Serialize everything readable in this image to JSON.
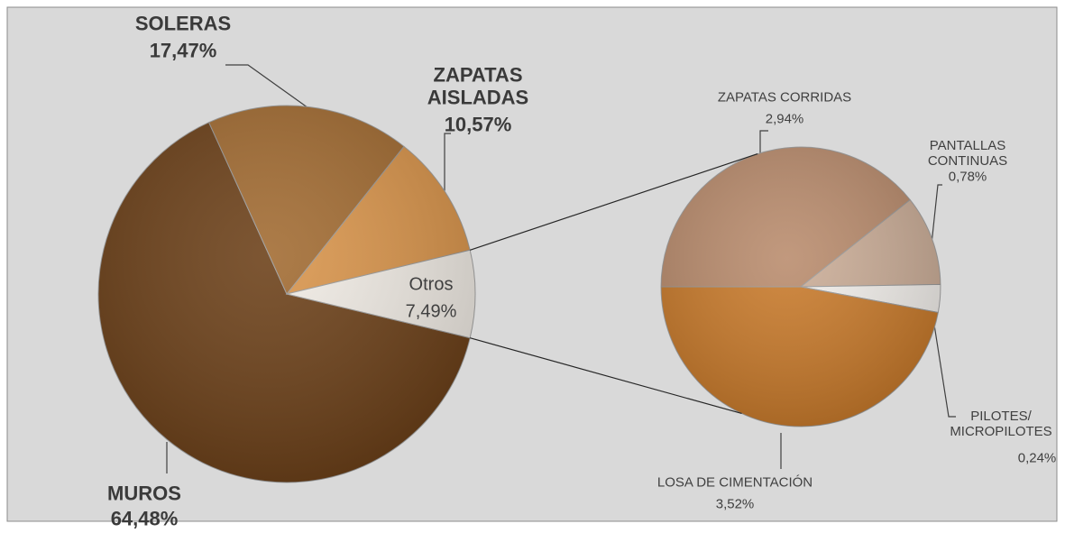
{
  "chart_data": [
    {
      "type": "pie",
      "categories": [
        "MUROS",
        "SOLERAS",
        "ZAPATAS AISLADAS",
        "Otros"
      ],
      "values": [
        64.48,
        17.47,
        10.57,
        7.49
      ],
      "value_labels": [
        "64,48%",
        "17,47%",
        "10,57%",
        "7,49%"
      ],
      "colors": [
        "#6b3f17",
        "#a16a30",
        "#d9944a",
        "#f1ece5"
      ]
    },
    {
      "type": "pie",
      "categories": [
        "ZAPATAS CORRIDAS",
        "PANTALLAS CONTINUAS",
        "PILOTES/ MICROPILOTES",
        "LOSA DE CIMENTACIÓN"
      ],
      "values": [
        2.94,
        0.78,
        0.24,
        3.52
      ],
      "value_labels": [
        "2,94%",
        "0,78%",
        "0,24%",
        "3,52%"
      ],
      "colors": [
        "#b98b6c",
        "#cbad97",
        "#f3f0ec",
        "#c97a2a"
      ]
    }
  ]
}
